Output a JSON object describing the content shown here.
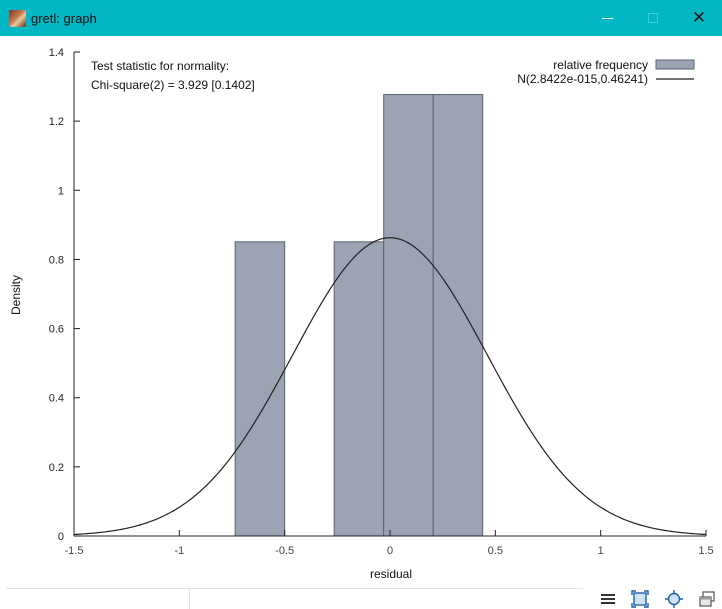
{
  "window": {
    "title": "gretl: graph",
    "icons": {
      "app": "gretl-app-icon",
      "minimize": "minimize-icon",
      "maximize": "maximize-icon",
      "close": "close-icon"
    },
    "accent_color": "#00b7c3"
  },
  "annotation": {
    "line1": "Test statistic for normality:",
    "line2": "Chi-square(2) = 3.929 [0.1402]"
  },
  "chart_data": {
    "type": "bar",
    "title": "",
    "xlabel": "residual",
    "ylabel": "Density",
    "xlim": [
      -1.5,
      1.5
    ],
    "ylim": [
      0,
      1.4
    ],
    "xticks": [
      -1.5,
      -1,
      -0.5,
      0,
      0.5,
      1,
      1.5
    ],
    "xtick_labels": [
      "-1.5",
      "-1",
      "-0.5",
      "0",
      "0.5",
      "1",
      "1.5"
    ],
    "yticks": [
      0,
      0.2,
      0.4,
      0.6,
      0.8,
      1,
      1.2,
      1.4
    ],
    "ytick_labels": [
      "0",
      "0.2",
      "0.4",
      "0.6",
      "0.8",
      "1",
      "1.2",
      "1.4"
    ],
    "grid": false,
    "legend_position": "top-right",
    "series": [
      {
        "name": "relative frequency",
        "kind": "histogram",
        "color": "#9ca3b2",
        "edge_color": "#5a6275",
        "bins": [
          {
            "x0": -0.735,
            "x1": -0.5,
            "density": 0.851
          },
          {
            "x0": -0.5,
            "x1": -0.265,
            "density": 0
          },
          {
            "x0": -0.265,
            "x1": -0.03,
            "density": 0.851
          },
          {
            "x0": -0.03,
            "x1": 0.205,
            "density": 1.277
          },
          {
            "x0": 0.205,
            "x1": 0.44,
            "density": 1.277
          }
        ]
      },
      {
        "name": "N(2.8422e-015,0.46241)",
        "kind": "normal_curve",
        "color": "#222222",
        "mean": 2.8422e-15,
        "sd": 0.46241
      }
    ]
  },
  "toolbar": {
    "icons": [
      "menu-icon",
      "fit-icon",
      "zoom-icon",
      "window-icon"
    ]
  }
}
